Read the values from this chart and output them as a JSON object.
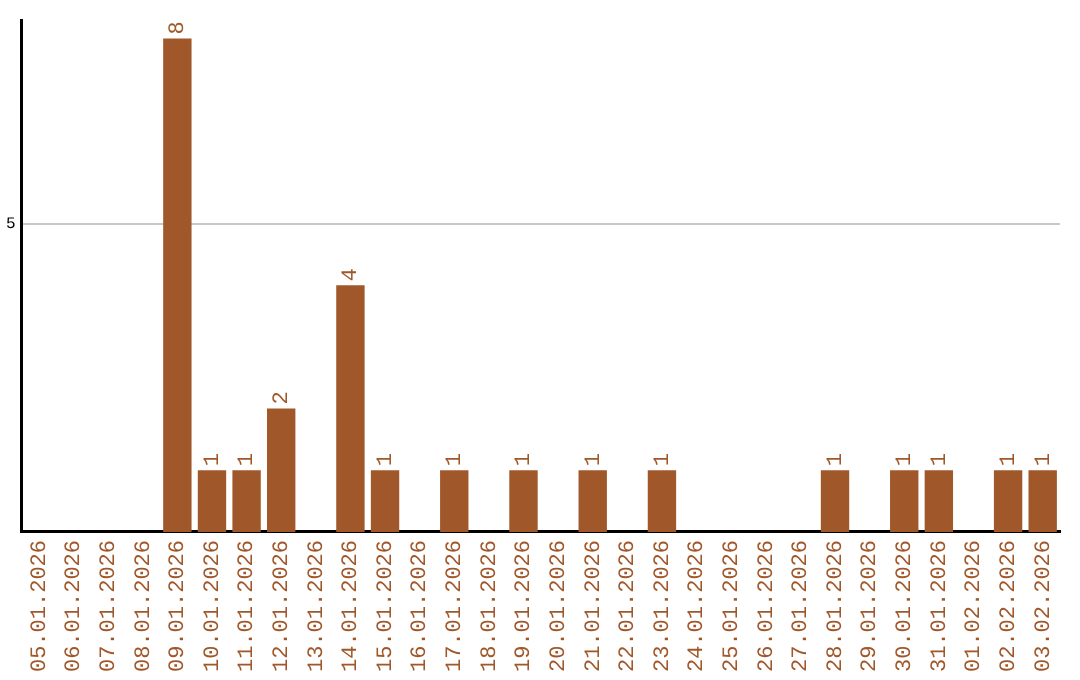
{
  "chart_data": {
    "type": "bar",
    "categories": [
      "05.01.2026",
      "06.01.2026",
      "07.01.2026",
      "08.01.2026",
      "09.01.2026",
      "10.01.2026",
      "11.01.2026",
      "12.01.2026",
      "13.01.2026",
      "14.01.2026",
      "15.01.2026",
      "16.01.2026",
      "17.01.2026",
      "18.01.2026",
      "19.01.2026",
      "20.01.2026",
      "21.01.2026",
      "22.01.2026",
      "23.01.2026",
      "24.01.2026",
      "25.01.2026",
      "26.01.2026",
      "27.01.2026",
      "28.01.2026",
      "29.01.2026",
      "30.01.2026",
      "31.01.2026",
      "01.02.2026",
      "02.02.2026",
      "03.02.2026"
    ],
    "values": [
      0,
      0,
      0,
      0,
      8,
      1,
      1,
      2,
      0,
      4,
      1,
      0,
      1,
      0,
      1,
      0,
      1,
      0,
      1,
      0,
      0,
      0,
      0,
      1,
      0,
      1,
      1,
      0,
      1,
      1
    ],
    "value_labels": [
      null,
      null,
      null,
      null,
      "8",
      "1",
      "1",
      "2",
      null,
      "4",
      "1",
      null,
      "1",
      null,
      "1",
      null,
      "1",
      null,
      "1",
      null,
      null,
      null,
      null,
      "1",
      null,
      "1",
      "1",
      null,
      "1",
      "1"
    ],
    "color": "#a0582a",
    "ylim": [
      0,
      8.3
    ],
    "yticks": [
      5
    ],
    "grid": "y",
    "legend": false
  }
}
